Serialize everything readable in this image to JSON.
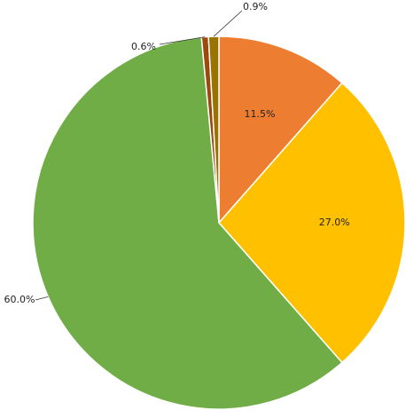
{
  "chart_data": {
    "type": "pie",
    "values": [
      11.5,
      27.0,
      60.0,
      0.6,
      0.9
    ],
    "value_labels": [
      "11.5%",
      "27.0%",
      "60.0%",
      "0.6%",
      "0.9%"
    ],
    "colors": [
      "#ED7D31",
      "#FFC000",
      "#70AD47",
      "#9E480E",
      "#997300"
    ]
  }
}
